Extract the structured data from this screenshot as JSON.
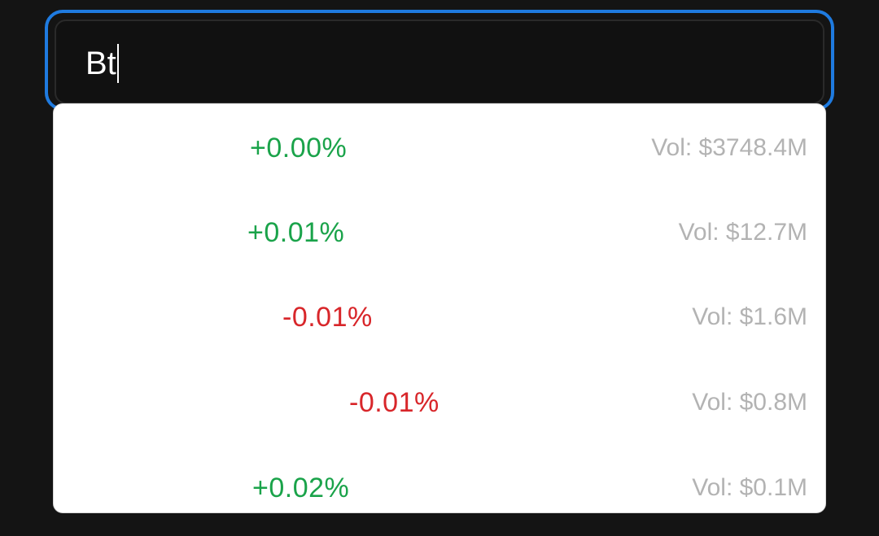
{
  "search": {
    "value": "Bt"
  },
  "colors": {
    "focus_border": "#1f7be0",
    "positive": "#1aa34a",
    "negative": "#d8262a",
    "volume_text": "#b3b3b3"
  },
  "results": [
    {
      "change": "+0.00%",
      "direction": "positive",
      "volume": "Vol: $3748.4M"
    },
    {
      "change": "+0.01%",
      "direction": "positive",
      "volume": "Vol: $12.7M"
    },
    {
      "change": "-0.01%",
      "direction": "negative",
      "volume": "Vol: $1.6M"
    },
    {
      "change": "-0.01%",
      "direction": "negative",
      "volume": "Vol: $0.8M"
    },
    {
      "change": "+0.02%",
      "direction": "positive",
      "volume": "Vol: $0.1M"
    }
  ]
}
